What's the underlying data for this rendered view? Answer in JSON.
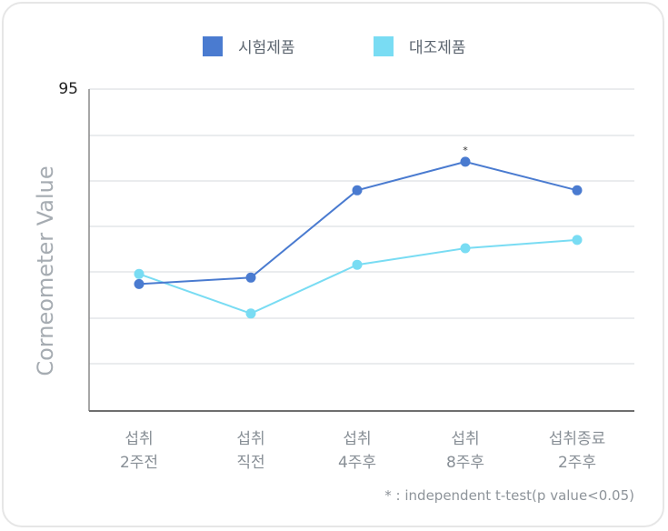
{
  "chart_data": {
    "type": "line",
    "title": "",
    "ylabel": "Corneometer Value",
    "xlabel": "",
    "ylim": [
      60,
      95
    ],
    "y_tick_labels": [
      "95"
    ],
    "grid": true,
    "legend_position": "top-center",
    "categories": [
      [
        "섭취",
        "2주전"
      ],
      [
        "섭취",
        "직전"
      ],
      [
        "섭취",
        "4주후"
      ],
      [
        "섭취",
        "8주후"
      ],
      [
        "섭취종료",
        "2주후"
      ]
    ],
    "series": [
      {
        "name": "시험제품",
        "color": "#4a7bd0",
        "values": [
          73.8,
          74.5,
          84.0,
          87.1,
          84.0
        ]
      },
      {
        "name": "대조제품",
        "color": "#79dcf3",
        "values": [
          74.9,
          70.6,
          75.9,
          77.7,
          78.6
        ]
      }
    ],
    "annotations": [
      {
        "category_index": 3,
        "series_index": 0,
        "text": "*"
      }
    ],
    "footnote": "* : independent t-test(p value<0.05)"
  }
}
